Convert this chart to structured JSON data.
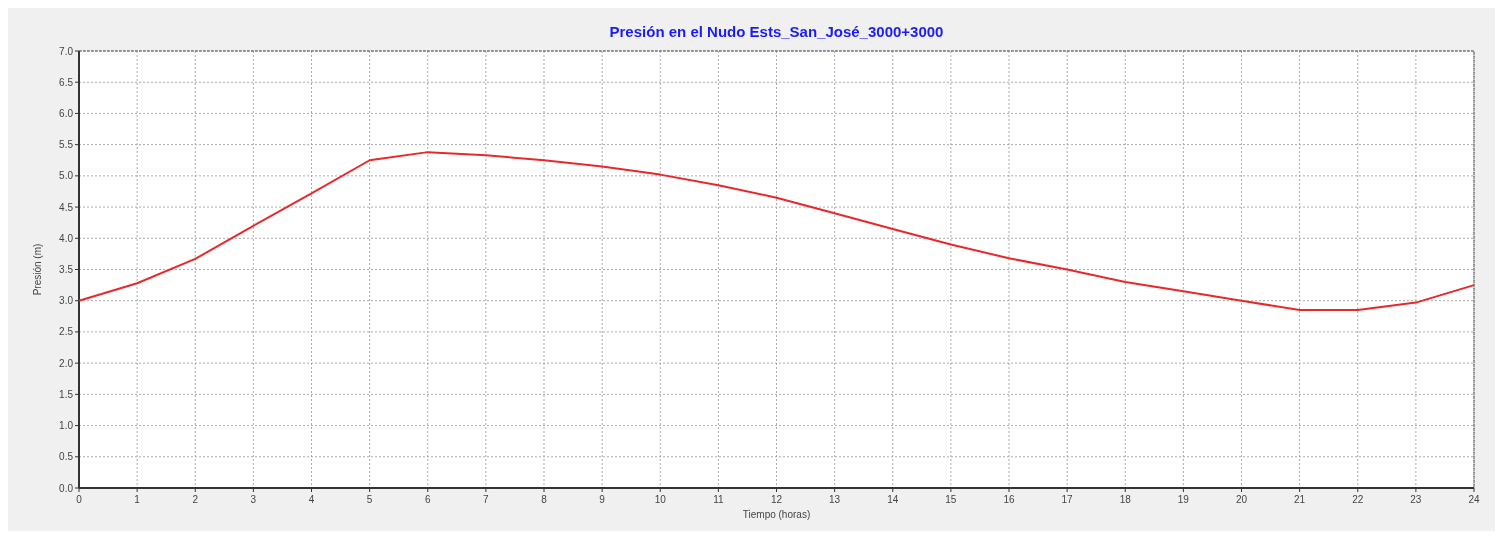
{
  "chart_data": {
    "type": "line",
    "title": "Presión en el Nudo Ests_San_José_3000+3000",
    "xlabel": "Tiempo (horas)",
    "ylabel": "Presión (m)",
    "x": [
      0,
      1,
      2,
      3,
      4,
      5,
      6,
      7,
      8,
      9,
      10,
      11,
      12,
      13,
      14,
      15,
      16,
      17,
      18,
      19,
      20,
      21,
      22,
      23,
      24
    ],
    "series": [
      {
        "color": "#e8282b",
        "values": [
          3.0,
          3.28,
          3.67,
          4.2,
          4.72,
          5.25,
          5.38,
          5.33,
          5.25,
          5.15,
          5.02,
          4.85,
          4.65,
          4.4,
          4.15,
          3.9,
          3.68,
          3.5,
          3.3,
          3.15,
          3.0,
          2.85,
          2.85,
          2.97,
          3.25
        ]
      }
    ],
    "xlim": [
      0,
      24
    ],
    "xticks": [
      0,
      1,
      2,
      3,
      4,
      5,
      6,
      7,
      8,
      9,
      10,
      11,
      12,
      13,
      14,
      15,
      16,
      17,
      18,
      19,
      20,
      21,
      22,
      23,
      24
    ],
    "ylim": [
      0,
      7
    ],
    "yticks": [
      {
        "value": 0,
        "label": "0.0"
      },
      {
        "value": 0.5,
        "label": "0.5"
      },
      {
        "value": 1,
        "label": "1.0"
      },
      {
        "value": 1.5,
        "label": "1.5"
      },
      {
        "value": 2,
        "label": "2.0"
      },
      {
        "value": 2.5,
        "label": "2.5"
      },
      {
        "value": 3,
        "label": "3.0"
      },
      {
        "value": 3.5,
        "label": "3.5"
      },
      {
        "value": 4,
        "label": "4.0"
      },
      {
        "value": 4.5,
        "label": "4.5"
      },
      {
        "value": 5,
        "label": "5.0"
      },
      {
        "value": 5.5,
        "label": "5.5"
      },
      {
        "value": 6,
        "label": "6.0"
      },
      {
        "value": 6.5,
        "label": "6.5"
      },
      {
        "value": 7,
        "label": "7.0"
      }
    ],
    "grid": true
  }
}
